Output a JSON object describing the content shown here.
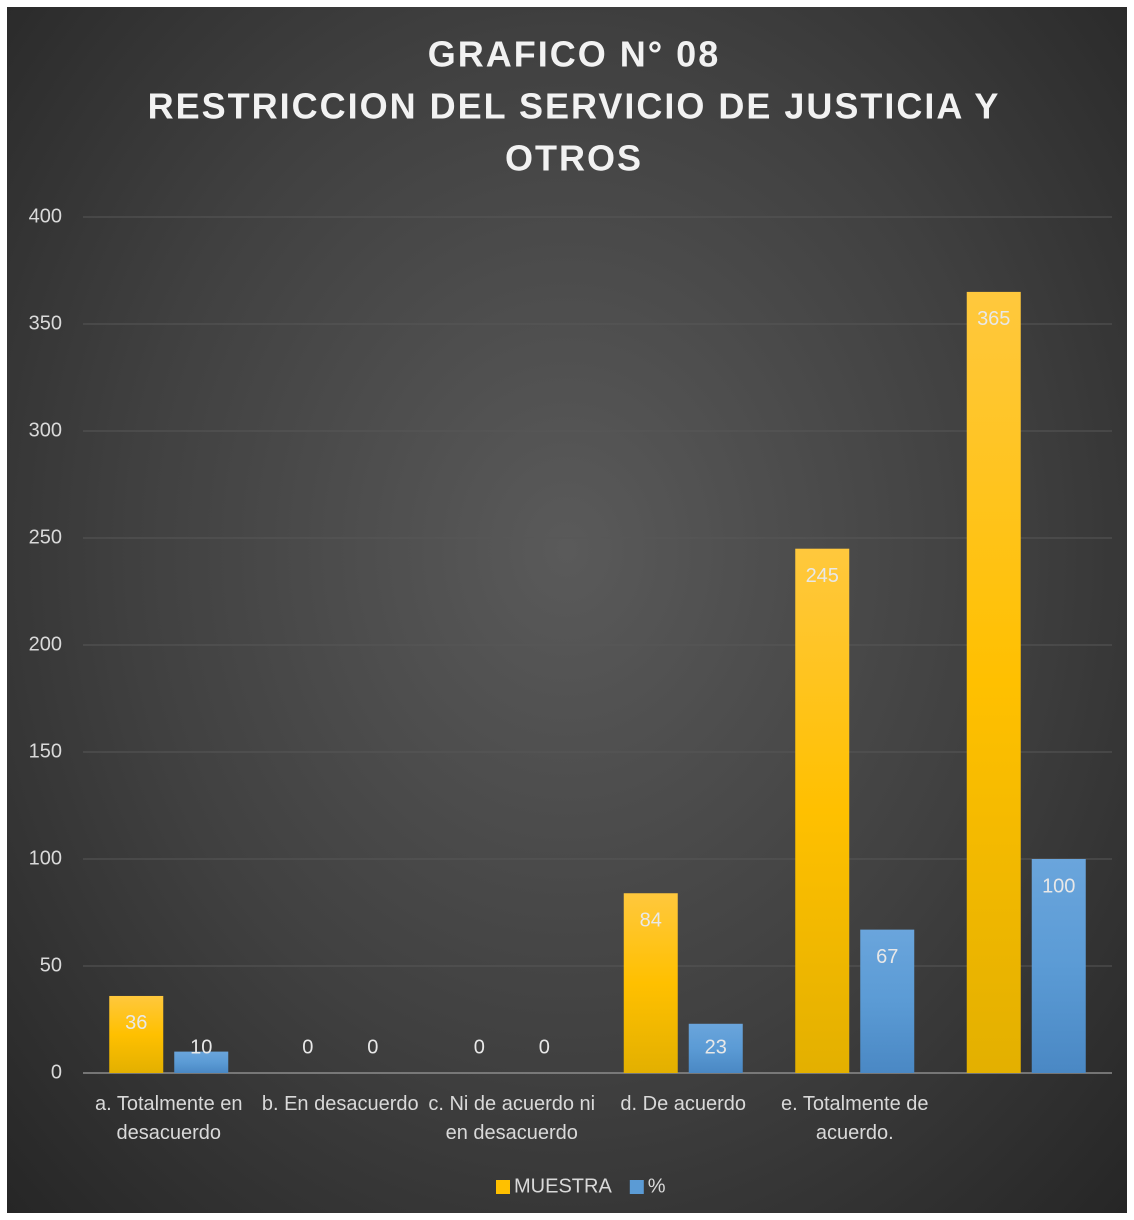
{
  "chart_data": {
    "type": "bar",
    "title": [
      "GRAFICO N° 08",
      "RESTRICCION DEL SERVICIO DE JUSTICIA Y",
      "OTROS"
    ],
    "categories": [
      "a. Totalmente en desacuerdo",
      "b. En desacuerdo",
      "c. Ni de acuerdo ni en desacuerdo",
      "d. De acuerdo",
      "e. Totalmente de acuerdo.",
      null
    ],
    "series": [
      {
        "name": "MUESTRA",
        "color": "#ffc000",
        "values": [
          36,
          0,
          0,
          84,
          245,
          365
        ]
      },
      {
        "name": "%",
        "color": "#5b9bd5",
        "values": [
          10,
          0,
          0,
          23,
          67,
          100
        ]
      }
    ],
    "ylim": [
      0,
      400
    ],
    "yticks": [
      0,
      50,
      100,
      150,
      200,
      250,
      300,
      350,
      400
    ],
    "grid": true,
    "legend": "bottom"
  }
}
